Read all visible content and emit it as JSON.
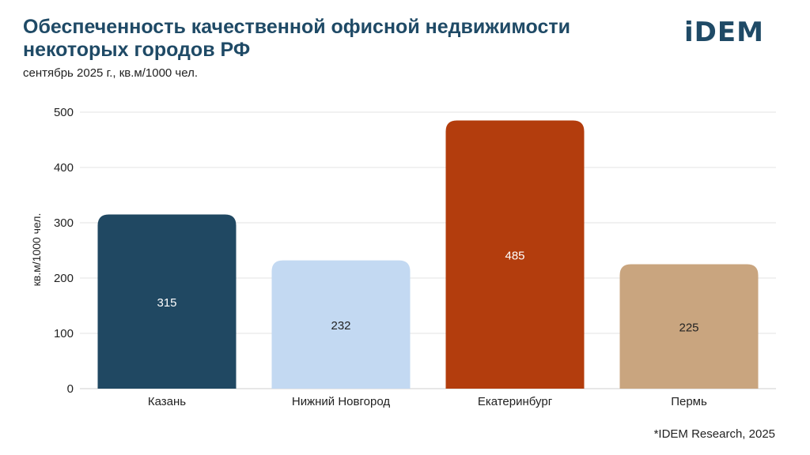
{
  "logo_text": "iDEM",
  "source_note": "*IDEM Research, 2025",
  "chart_data": {
    "type": "bar",
    "title": "Обеспеченность качественной офисной недвижимости некоторых городов РФ",
    "subtitle": "сентябрь 2025 г., кв.м/1000 чел.",
    "ylabel": "кв.м/1000 чел.",
    "xlabel": "",
    "ylim": [
      0,
      500
    ],
    "yticks": [
      0,
      100,
      200,
      300,
      400,
      500
    ],
    "grid": true,
    "categories": [
      "Казань",
      "Нижний Новгород",
      "Екатеринбург",
      "Пермь"
    ],
    "values": [
      315,
      232,
      485,
      225
    ],
    "colors": [
      "#204862",
      "#c3d9f2",
      "#b33d0d",
      "#c9a57f"
    ],
    "label_colors": [
      "#ffffff",
      "#222222",
      "#ffffff",
      "#222222"
    ]
  }
}
